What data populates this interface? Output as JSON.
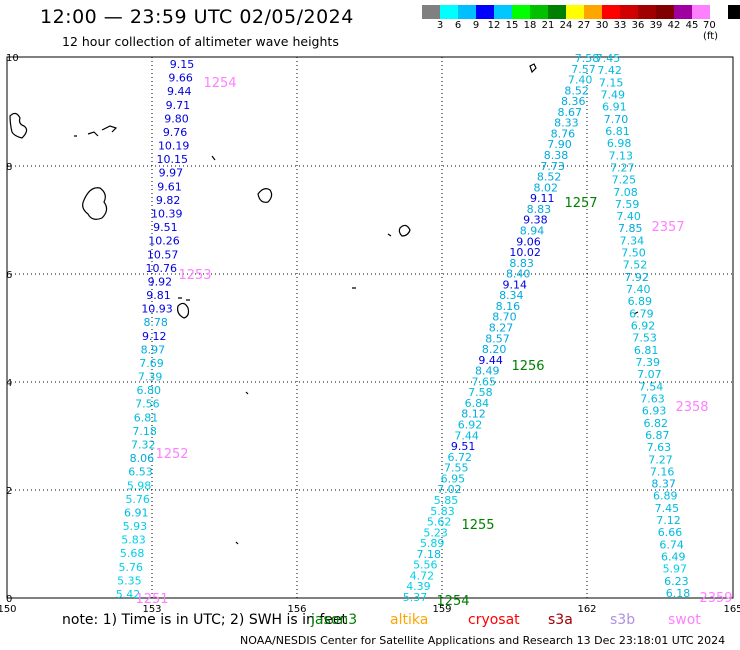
{
  "title": "12:00 — 23:59 UTC 02/05/2024",
  "subtitle": "12 hour collection of altimeter wave heights",
  "legend_scale": {
    "labels": [
      "3",
      "6",
      "9",
      "12",
      "15",
      "18",
      "21",
      "24",
      "27",
      "30",
      "33",
      "36",
      "39",
      "42",
      "45",
      "70 (ft)"
    ],
    "colors": [
      "#808080",
      "#00ffff",
      "#00bfff",
      "#0000ff",
      "#00c8ff",
      "#00ff00",
      "#00c000",
      "#008000",
      "#ffff00",
      "#ffa500",
      "#ff0000",
      "#d00000",
      "#a00000",
      "#800000",
      "#a000a0",
      "#ff80ff",
      "#ffffff",
      "#000000"
    ]
  },
  "axes": {
    "x_ticks": [
      "150",
      "153",
      "156",
      "159",
      "162",
      "165"
    ],
    "y_ticks": [
      "0",
      "2",
      "4",
      "6",
      "8",
      "10"
    ]
  },
  "note": "note:  1) Time is in UTC; 2) SWH is in feet",
  "satellites": [
    {
      "name": "jason3",
      "color": "#008000"
    },
    {
      "name": "altika",
      "color": "#ffa500"
    },
    {
      "name": "cryosat",
      "color": "#ff0000"
    },
    {
      "name": "s3a",
      "color": "#a00000"
    },
    {
      "name": "s3b",
      "color": "#b090e0"
    },
    {
      "name": "swot",
      "color": "#ff80ff"
    }
  ],
  "footer": "NOAA/NESDIS Center for Satellite Applications and Research     13 Dec 23:18:01 UTC 2024",
  "track_times": [
    {
      "text": "1254",
      "color": "#ff80ff"
    },
    {
      "text": "1253",
      "color": "#ff80ff"
    },
    {
      "text": "1252",
      "color": "#ff80ff"
    },
    {
      "text": "1251",
      "color": "#ff80ff"
    },
    {
      "text": "1257",
      "color": "#008000"
    },
    {
      "text": "1256",
      "color": "#008000"
    },
    {
      "text": "1255",
      "color": "#008000"
    },
    {
      "text": "1254",
      "color": "#008000"
    },
    {
      "text": "2357",
      "color": "#ff80ff"
    },
    {
      "text": "2358",
      "color": "#ff80ff"
    },
    {
      "text": "2359",
      "color": "#ff80ff"
    }
  ],
  "tracks": [
    {
      "name": "left-swath",
      "values": [
        "9.15",
        "9.66",
        "9.44",
        "9.71",
        "9.80",
        "9.76",
        "10.19",
        "10.15",
        "9.97",
        "9.61",
        "9.82",
        "10.39",
        "9.51",
        "10.26",
        "10.57",
        "10.76",
        "9.92",
        "9.81",
        "10.93",
        "8.78",
        "9.12",
        "8.97",
        "7.69",
        "7.39",
        "6.80",
        "7.56",
        "6.81",
        "7.18",
        "7.32",
        "8.06",
        "6.53",
        "5.98",
        "5.76",
        "6.91",
        "5.93",
        "5.83",
        "5.68",
        "5.76",
        "5.35",
        "5.42"
      ]
    },
    {
      "name": "middle-swath",
      "values": [
        "7.58",
        "7.57",
        "7.40",
        "8.52",
        "8.36",
        "8.67",
        "8.33",
        "8.76",
        "7.90",
        "8.38",
        "7.73",
        "8.52",
        "8.02",
        "9.11",
        "8.83",
        "9.38",
        "8.94",
        "9.06",
        "10.02",
        "8.83",
        "8.40",
        "9.14",
        "8.34",
        "8.16",
        "8.70",
        "8.27",
        "8.57",
        "8.20",
        "9.44",
        "8.49",
        "7.65",
        "7.58",
        "6.84",
        "8.12",
        "6.92",
        "7.44",
        "9.51",
        "6.72",
        "7.55",
        "6.95",
        "7.02",
        "5.85",
        "5.83",
        "5.62",
        "5.23",
        "5.89",
        "7.18",
        "5.56",
        "4.72",
        "4.39",
        "5.37"
      ]
    },
    {
      "name": "right-swath",
      "values": [
        "7.45",
        "7.42",
        "7.15",
        "7.49",
        "6.91",
        "7.70",
        "6.81",
        "6.98",
        "7.13",
        "7.27",
        "7.25",
        "7.08",
        "7.59",
        "7.40",
        "7.85",
        "7.34",
        "7.50",
        "7.52",
        "7.92",
        "7.40",
        "6.89",
        "6.79",
        "6.92",
        "7.53",
        "6.81",
        "7.39",
        "7.07",
        "7.54",
        "7.63",
        "6.93",
        "6.82",
        "6.87",
        "7.63",
        "7.27",
        "7.16",
        "8.37",
        "6.89",
        "7.45",
        "7.12",
        "6.66",
        "6.74",
        "6.49",
        "5.97",
        "6.23",
        "6.18"
      ]
    }
  ]
}
